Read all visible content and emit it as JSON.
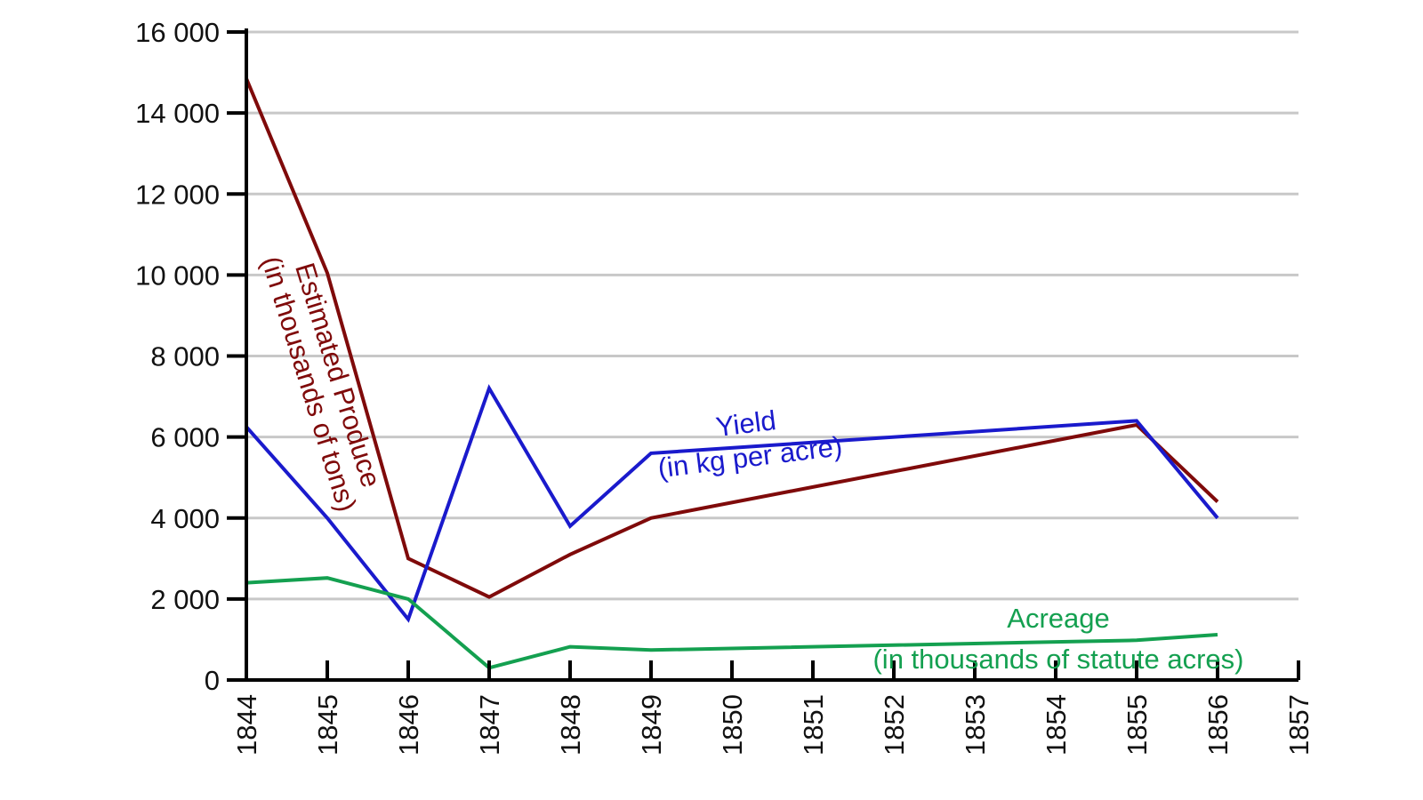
{
  "chart_data": {
    "type": "line",
    "title": "",
    "xlabel": "",
    "ylabel": "",
    "x": [
      1844,
      1845,
      1846,
      1847,
      1848,
      1849,
      1850,
      1851,
      1852,
      1853,
      1854,
      1855,
      1856,
      1857
    ],
    "x_tick_labels": [
      "1844",
      "1845",
      "1846",
      "1847",
      "1848",
      "1849",
      "1850",
      "1851",
      "1852",
      "1853",
      "1854",
      "1855",
      "1856",
      "1857"
    ],
    "y_tick_values": [
      0,
      2000,
      4000,
      6000,
      8000,
      10000,
      12000,
      14000,
      16000
    ],
    "y_tick_labels": [
      "0",
      "2 000",
      "4 000",
      "6 000",
      "8 000",
      "10 000",
      "12 000",
      "14 000",
      "16 000"
    ],
    "xlim": [
      1844,
      1857
    ],
    "ylim": [
      0,
      16000
    ],
    "grid": "horizontal",
    "series": [
      {
        "key": "produce",
        "label_line1": "Estimated Produce",
        "label_line2": "(in thousands of tons)",
        "color": "#7f0a0a",
        "points": [
          [
            1844,
            14850
          ],
          [
            1845,
            10050
          ],
          [
            1846,
            3000
          ],
          [
            1847,
            2050
          ],
          [
            1848,
            3100
          ],
          [
            1849,
            4000
          ],
          [
            1855,
            6300
          ],
          [
            1856,
            4400
          ]
        ]
      },
      {
        "key": "yield",
        "label_line1": "Yield",
        "label_line2": "(in kg per acre)",
        "color": "#1a1acc",
        "points": [
          [
            1844,
            6250
          ],
          [
            1845,
            4000
          ],
          [
            1846,
            1500
          ],
          [
            1847,
            7200
          ],
          [
            1848,
            3800
          ],
          [
            1849,
            5600
          ],
          [
            1855,
            6400
          ],
          [
            1856,
            4000
          ]
        ]
      },
      {
        "key": "acreage",
        "label_line1": "Acreage",
        "label_line2": "(in thousands of statute acres)",
        "color": "#14a050",
        "points": [
          [
            1844,
            2400
          ],
          [
            1845,
            2520
          ],
          [
            1846,
            2000
          ],
          [
            1847,
            300
          ],
          [
            1848,
            820
          ],
          [
            1849,
            740
          ],
          [
            1855,
            980
          ],
          [
            1856,
            1120
          ]
        ]
      }
    ]
  }
}
